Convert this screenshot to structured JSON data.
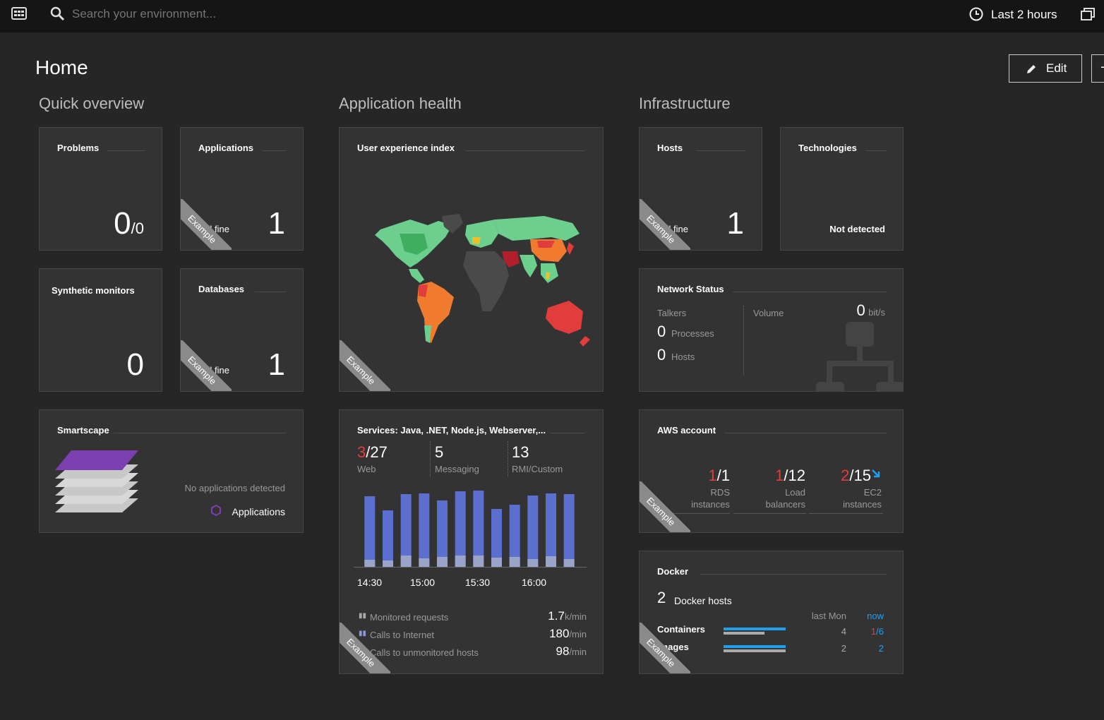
{
  "topbar": {
    "search_placeholder": "Search your environment...",
    "timeframe": "Last 2 hours"
  },
  "page": {
    "title": "Home",
    "edit_label": "Edit",
    "plus_label": "+"
  },
  "sections": {
    "quick": "Quick overview",
    "app": "Application health",
    "infra": "Infrastructure"
  },
  "tiles": {
    "problems": {
      "title": "Problems",
      "value": "0",
      "total": "/0"
    },
    "applications": {
      "title": "Applications",
      "status": "All fine",
      "value": "1"
    },
    "synthetic": {
      "title": "Synthetic monitors",
      "value": "0"
    },
    "databases": {
      "title": "Databases",
      "status": "All fine",
      "value": "1"
    },
    "smartscape": {
      "title": "Smartscape",
      "empty": "No applications detected",
      "legend": "Applications"
    },
    "uxi": {
      "title": "User experience index"
    },
    "hosts": {
      "title": "Hosts",
      "status": "All fine",
      "value": "1"
    },
    "technologies": {
      "title": "Technologies",
      "status": "Not detected"
    },
    "network": {
      "title": "Network Status",
      "talkers_label": "Talkers",
      "processes_value": "0",
      "processes_label": "Processes",
      "hosts_value": "0",
      "hosts_label": "Hosts",
      "volume_label": "Volume",
      "volume_value": "0",
      "volume_unit": "bit/s"
    },
    "services": {
      "title": "Services: Java, .NET, Node.js, Webserver,...",
      "web_bad": "3",
      "web_total": "/27",
      "web_label": "Web",
      "messaging_value": "5",
      "messaging_label": "Messaging",
      "rmi_value": "13",
      "rmi_label": "RMI/Custom",
      "metrics": [
        {
          "label": "Monitored requests",
          "value": "1.7",
          "unit": "k/min"
        },
        {
          "label": "Calls to Internet",
          "value": "180",
          "unit": "/min"
        },
        {
          "label": "Calls to unmonitored hosts",
          "value": "98",
          "unit": "/min"
        }
      ]
    },
    "aws": {
      "title": "AWS account",
      "items": [
        {
          "bad": "1",
          "total": "/1",
          "label1": "RDS",
          "label2": "instances"
        },
        {
          "bad": "1",
          "total": "/12",
          "label1": "Load",
          "label2": "balancers"
        },
        {
          "bad": "2",
          "total": "/15",
          "label1": "EC2",
          "label2": "instances"
        }
      ]
    },
    "docker": {
      "title": "Docker",
      "hosts_value": "2",
      "hosts_label": "Docker hosts",
      "col_last": "last Mon",
      "col_now": "now",
      "rows": [
        {
          "label": "Containers",
          "last": "4",
          "now_bad": "1",
          "now_total": "/6"
        },
        {
          "label": "Images",
          "last": "2",
          "now_total": "2"
        }
      ]
    }
  },
  "ribbon_label": "Example",
  "chart_data": {
    "type": "bar",
    "categories": [
      "14:15",
      "14:25",
      "14:35",
      "14:45",
      "14:55",
      "15:05",
      "15:15",
      "15:25",
      "15:35",
      "15:45",
      "15:55",
      "16:05"
    ],
    "x_tick_labels": [
      "14:30",
      "15:00",
      "15:30",
      "16:00"
    ],
    "series": [
      {
        "values": [
          100,
          80,
          103,
          104,
          94,
          107,
          108,
          82,
          88,
          101,
          104,
          103
        ],
        "color": "#5b6fcf"
      },
      {
        "values": [
          10,
          9,
          16,
          12,
          14,
          16,
          16,
          13,
          14,
          11,
          15,
          11
        ],
        "color": "#9aa3c8"
      }
    ],
    "ylim": [
      0,
      110
    ]
  },
  "colors": {
    "accent_blue": "#1ea0ef",
    "red": "#e13d3d",
    "purple": "#7b3fb0"
  }
}
